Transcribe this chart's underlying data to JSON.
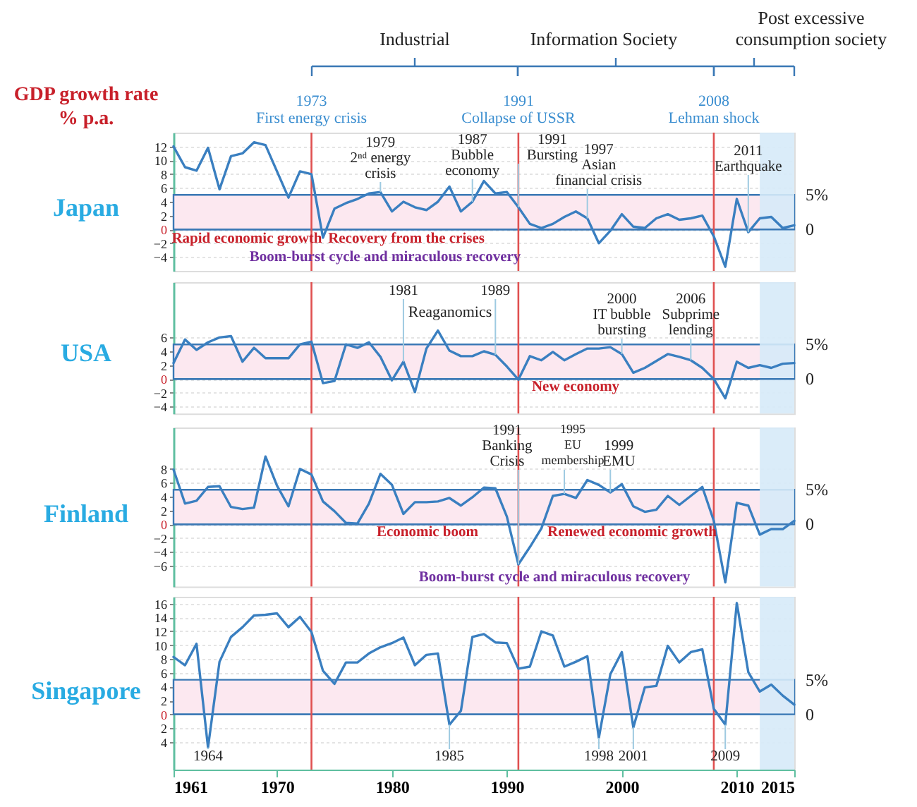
{
  "chart_data": [
    {
      "type": "line",
      "title": "Japan",
      "ylabel": "GDP growth rate\n% p.a.",
      "xlim": [
        1961,
        2015
      ],
      "ylim": [
        -6,
        14
      ],
      "yticks": [
        -4,
        -2,
        0,
        2,
        4,
        6,
        8,
        10,
        12
      ],
      "tick_labels": "y",
      "grid": "y",
      "series": [
        {
          "color": "#3a7fc0",
          "x": [
            1961,
            1962,
            1963,
            1964,
            1965,
            1966,
            1967,
            1968,
            1969,
            1971,
            1972,
            1973,
            1974,
            1975,
            1976,
            1977,
            1978,
            1979,
            1980,
            1981,
            1982,
            1983,
            1984,
            1985,
            1986,
            1987,
            1988,
            1989,
            1990,
            1991,
            1992,
            1993,
            1994,
            1995,
            1996,
            1997,
            1998,
            1999,
            2000,
            2001,
            2002,
            2003,
            2004,
            2005,
            2006,
            2007,
            2008,
            2009,
            2010,
            2011,
            2012,
            2013,
            2014,
            2015
          ],
          "values": [
            12,
            9,
            8.5,
            11.8,
            5.8,
            10.6,
            11,
            12.6,
            12.2,
            4.6,
            8.4,
            8,
            -1.2,
            3,
            3.8,
            4.4,
            5.2,
            5.4,
            2.6,
            4,
            3.2,
            2.8,
            4,
            6.2,
            2.6,
            4,
            7,
            5.2,
            5.4,
            3.2,
            0.8,
            0.2,
            0.8,
            1.8,
            2.6,
            1.6,
            -2,
            -0.2,
            2.2,
            0.4,
            0.2,
            1.6,
            2.2,
            1.4,
            1.6,
            2,
            -1,
            -5.4,
            4.4,
            -0.4,
            1.6,
            1.8,
            0.2,
            0.6
          ]
        }
      ],
      "bands": [
        {
          "axis": "y",
          "from": 0,
          "to": 5,
          "label": "5%",
          "color": "#fce8f0"
        },
        {
          "axis": "x",
          "from": 2012,
          "to": 2015,
          "color": "#d6eaf8"
        }
      ],
      "ref_lines": [
        {
          "axis": "y",
          "value": 0,
          "label": "0",
          "color": "#3a78b5"
        },
        {
          "axis": "x",
          "value": 1973,
          "label": "1973\nFirst energy crisis",
          "color": "#e05050"
        },
        {
          "axis": "x",
          "value": 1991,
          "label": "1991\nCollapse of USSR",
          "color": "#e05050"
        },
        {
          "axis": "x",
          "value": 2008,
          "label": "2008\nLehman shock",
          "color": "#e05050"
        }
      ],
      "annotations": [
        {
          "text": "1979\n2ⁿᵈ energy\ncrisis",
          "x": 1979,
          "y": 5.4
        },
        {
          "text": "1987\nBubble\neconomy",
          "x": 1987,
          "y": 4
        },
        {
          "text": "1991\nBursting",
          "x": 1991,
          "y": 3.2
        },
        {
          "text": "1997\nAsian\nfinancial crisis",
          "x": 1997,
          "y": 1.6
        },
        {
          "text": "2011\nEarthquake",
          "x": 2011,
          "y": -0.4
        },
        "Industrial",
        "Information Society",
        "Post excessive\nconsumption society",
        "Rapid economic growth",
        "Recovery from the crises",
        "Boom-burst cycle and miraculous recovery"
      ]
    },
    {
      "type": "line",
      "title": "USA",
      "xlim": [
        1961,
        2015
      ],
      "ylim": [
        -5,
        14
      ],
      "yticks": [
        -4,
        -2,
        0,
        2,
        4,
        6
      ],
      "tick_labels": "y",
      "grid": "y",
      "x": [
        1961,
        1962,
        1963,
        1964,
        1965,
        1966,
        1967,
        1968,
        1969,
        1970,
        1971,
        1972,
        1973,
        1974,
        1975,
        1976,
        1977,
        1978,
        1979,
        1980,
        1981,
        1982,
        1983,
        1984,
        1985,
        1986,
        1987,
        1988,
        1989,
        1990,
        1991,
        1992,
        1993,
        1994,
        1995,
        1996,
        1997,
        1998,
        1999,
        2000,
        2001,
        2002,
        2003,
        2004,
        2005,
        2006,
        2007,
        2008,
        2009,
        2010,
        2011,
        2012,
        2013,
        2014,
        2015
      ],
      "series": [
        {
          "color": "#3a7fc0",
          "values": [
            2.3,
            5.7,
            4.2,
            5.3,
            6,
            6.2,
            2.5,
            4.5,
            3,
            3,
            3,
            5,
            5.4,
            -0.6,
            -0.3,
            5,
            4.5,
            5.3,
            3.2,
            -0.2,
            2.5,
            -1.9,
            4.4,
            7,
            4.1,
            3.3,
            3.3,
            4,
            3.5,
            1.8,
            -0.1,
            3.3,
            2.7,
            3.9,
            2.7,
            3.6,
            4.4,
            4.4,
            4.6,
            3.6,
            0.9,
            1.6,
            2.6,
            3.6,
            3.2,
            2.7,
            1.6,
            0,
            -2.8,
            2.5,
            1.6,
            2,
            1.6,
            2.2,
            2.3
          ]
        }
      ],
      "bands": [
        {
          "axis": "y",
          "from": 0,
          "to": 5,
          "label": "5%",
          "color": "#fce8f0"
        },
        {
          "axis": "x",
          "from": 2012,
          "to": 2015,
          "color": "#d6eaf8"
        }
      ],
      "ref_lines": [
        {
          "axis": "y",
          "value": 0,
          "label": "0",
          "color": "#3a78b5"
        },
        {
          "axis": "x",
          "value": 1973,
          "color": "#e05050"
        },
        {
          "axis": "x",
          "value": 1991,
          "color": "#e05050"
        },
        {
          "axis": "x",
          "value": 2008,
          "color": "#e05050"
        }
      ],
      "annotations": [
        {
          "text": "1981",
          "x": 1981,
          "y": 2.5
        },
        {
          "text": "1989",
          "x": 1989,
          "y": 3.5
        },
        "Reaganomics",
        {
          "text": "2000\nIT bubble\nbursting",
          "x": 2000,
          "y": 3.6
        },
        {
          "text": "2006\nSubprime\nlending",
          "x": 2006,
          "y": 2.7
        },
        "New economy"
      ]
    },
    {
      "type": "line",
      "title": "Finland",
      "xlim": [
        1961,
        2015
      ],
      "ylim": [
        -9,
        14
      ],
      "yticks": [
        -6,
        -4,
        -2,
        0,
        2,
        4,
        6,
        8
      ],
      "tick_labels": "y",
      "grid": "y",
      "x": [
        1961,
        1962,
        1963,
        1964,
        1965,
        1966,
        1967,
        1968,
        1969,
        1970,
        1971,
        1972,
        1973,
        1974,
        1975,
        1976,
        1977,
        1978,
        1979,
        1980,
        1981,
        1982,
        1983,
        1984,
        1985,
        1986,
        1987,
        1988,
        1989,
        1990,
        1991,
        1992,
        1993,
        1994,
        1995,
        1996,
        1997,
        1998,
        1999,
        2000,
        2001,
        2002,
        2003,
        2004,
        2005,
        2006,
        2007,
        2008,
        2009,
        2010,
        2011,
        2012,
        2013,
        2014,
        2015
      ],
      "series": [
        {
          "color": "#3a7fc0",
          "values": [
            7.9,
            3,
            3.4,
            5.4,
            5.5,
            2.5,
            2.2,
            2.4,
            9.8,
            5.6,
            2.6,
            8,
            7.2,
            3.3,
            1.9,
            0.2,
            0.1,
            3,
            7.3,
            5.7,
            1.5,
            3.2,
            3.2,
            3.3,
            3.8,
            2.7,
            3.9,
            5.3,
            5.2,
            1.1,
            -5.8,
            -3.3,
            -0.6,
            4.1,
            4.4,
            3.8,
            6.4,
            5.7,
            4.6,
            5.8,
            2.6,
            1.8,
            2.1,
            4.1,
            2.8,
            4.1,
            5.4,
            0.5,
            -8.4,
            3.1,
            2.7,
            -1.5,
            -0.7,
            -0.7,
            0.5
          ]
        }
      ],
      "bands": [
        {
          "axis": "y",
          "from": 0,
          "to": 5,
          "label": "5%",
          "color": "#fce8f0"
        },
        {
          "axis": "x",
          "from": 2012,
          "to": 2015,
          "color": "#d6eaf8"
        }
      ],
      "ref_lines": [
        {
          "axis": "y",
          "value": 0,
          "label": "0",
          "color": "#3a78b5"
        },
        {
          "axis": "x",
          "value": 1973,
          "color": "#e05050"
        },
        {
          "axis": "x",
          "value": 1991,
          "color": "#e05050"
        },
        {
          "axis": "x",
          "value": 2008,
          "color": "#e05050"
        }
      ],
      "annotations": [
        {
          "text": "1991\nBanking\nCrisis",
          "x": 1991,
          "y": -5.8
        },
        {
          "text": "1995\nEU\nmembership",
          "x": 1995,
          "y": 4.4
        },
        {
          "text": "1999\nEMU",
          "x": 1999,
          "y": 4.6
        },
        "Economic boom",
        "Renewed economic growth",
        "Boom-burst cycle and miraculous recovery"
      ]
    },
    {
      "type": "line",
      "title": "Singapore",
      "xlim": [
        1961,
        2015
      ],
      "ylim": [
        -8,
        17
      ],
      "yticks": [
        {
          "value": -4,
          "label": "4"
        },
        {
          "value": -2,
          "label": "2"
        },
        0,
        2,
        4,
        6,
        8,
        10,
        12,
        14,
        16
      ],
      "xticks": [
        1961,
        1970,
        1980,
        1990,
        2000,
        2010,
        2015
      ],
      "grid": "y",
      "x": [
        1961,
        1962,
        1963,
        1964,
        1965,
        1966,
        1967,
        1968,
        1969,
        1970,
        1971,
        1972,
        1973,
        1974,
        1975,
        1976,
        1977,
        1978,
        1979,
        1980,
        1981,
        1982,
        1983,
        1984,
        1985,
        1986,
        1987,
        1988,
        1989,
        1990,
        1991,
        1992,
        1993,
        1994,
        1995,
        1996,
        1997,
        1998,
        1999,
        2000,
        2001,
        2002,
        2003,
        2004,
        2005,
        2006,
        2007,
        2008,
        2009,
        2010,
        2011,
        2012,
        2013,
        2014,
        2015
      ],
      "series": [
        {
          "color": "#3a7fc0",
          "values": [
            8.3,
            7.1,
            10.2,
            -4.8,
            7.6,
            11.2,
            12.6,
            14.3,
            14.4,
            14.6,
            12.6,
            14.1,
            11.9,
            6.3,
            4.4,
            7.5,
            7.5,
            8.8,
            9.7,
            10.3,
            11.1,
            7.1,
            8.6,
            8.8,
            -1.5,
            0.5,
            11.2,
            11.6,
            10.4,
            10.3,
            6.6,
            6.9,
            12,
            11.4,
            6.9,
            7.6,
            8.4,
            -3.4,
            5.8,
            9,
            -1.9,
            3.9,
            4.1,
            9.9,
            7.5,
            9,
            9.4,
            0.8,
            -1.5,
            16.1,
            6.1,
            3.3,
            4.3,
            2.7,
            1.4
          ]
        }
      ],
      "bands": [
        {
          "axis": "y",
          "from": 0,
          "to": 5,
          "label": "5%",
          "color": "#fce8f0"
        },
        {
          "axis": "x",
          "from": 2012,
          "to": 2015,
          "color": "#d6eaf8"
        }
      ],
      "ref_lines": [
        {
          "axis": "y",
          "value": 0,
          "label": "0",
          "color": "#3a78b5"
        },
        {
          "axis": "x",
          "value": 1973,
          "color": "#e05050"
        },
        {
          "axis": "x",
          "value": 1991,
          "color": "#e05050"
        },
        {
          "axis": "x",
          "value": 2008,
          "color": "#e05050"
        }
      ],
      "annotations": [
        {
          "text": "1964",
          "x": 1964,
          "y": -4.8
        },
        {
          "text": "1985",
          "x": 1985,
          "y": -1.5
        },
        {
          "text": "1998",
          "x": 1998,
          "y": -3.4
        },
        {
          "text": "2001",
          "x": 2001,
          "y": -1.9
        },
        {
          "text": "2009",
          "x": 2009,
          "y": -1.5
        }
      ]
    }
  ]
}
